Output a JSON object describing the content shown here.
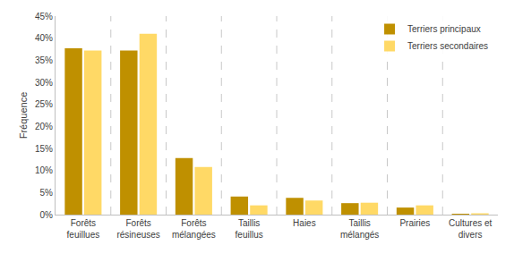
{
  "chart_data": {
    "type": "bar",
    "y_label": "Fréquence",
    "categories": [
      "Forêts feuillues",
      "Forêts résineuses",
      "Forêts mélangées",
      "Taillis feuillus",
      "Haies",
      "Taillis mélangés",
      "Prairies",
      "Cultures et divers"
    ],
    "series": [
      {
        "name": "Terriers principaux",
        "color": "#bf9000",
        "values": [
          37.7,
          37.2,
          12.8,
          4.1,
          3.8,
          2.6,
          1.6,
          0.2
        ]
      },
      {
        "name": "Terriers secondaires",
        "color": "#ffd966",
        "values": [
          37.2,
          41.0,
          10.8,
          2.1,
          3.2,
          2.7,
          2.1,
          0.3
        ]
      }
    ],
    "ylim": [
      0,
      45
    ],
    "yticks": [
      {
        "value": 0,
        "label": "0%"
      },
      {
        "value": 5,
        "label": "5%"
      },
      {
        "value": 10,
        "label": "10%"
      },
      {
        "value": 15,
        "label": "15%"
      },
      {
        "value": 20,
        "label": "20%"
      },
      {
        "value": 25,
        "label": "25%"
      },
      {
        "value": 30,
        "label": "30%"
      },
      {
        "value": 35,
        "label": "35%"
      },
      {
        "value": 40,
        "label": "40%"
      },
      {
        "value": 45,
        "label": "45%"
      }
    ],
    "grid": true,
    "legend": "top-right"
  }
}
